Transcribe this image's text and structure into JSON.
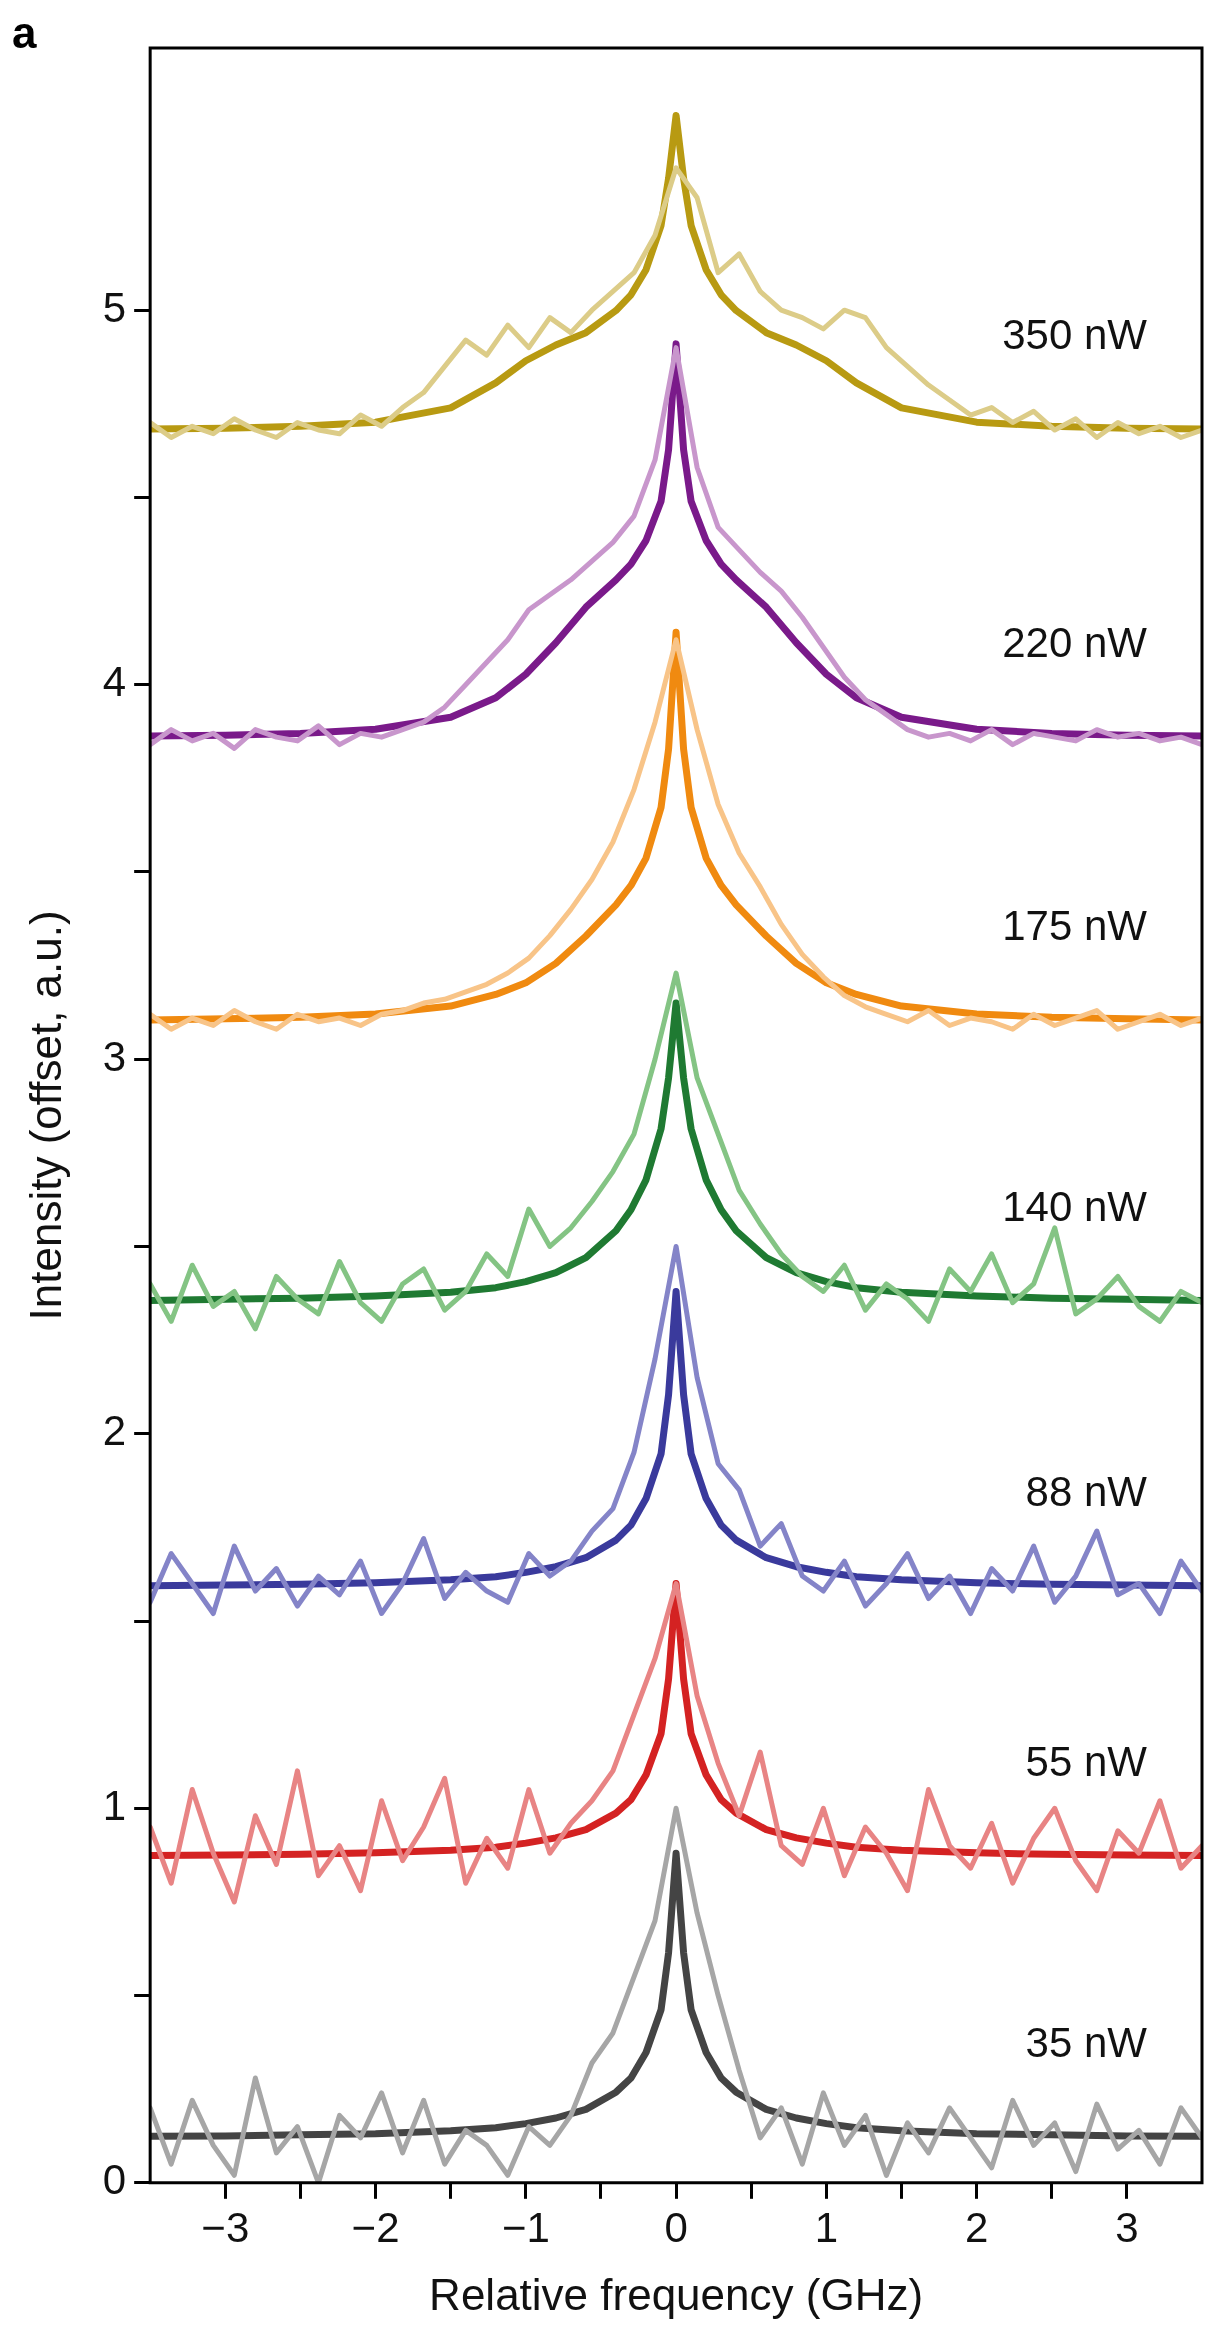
{
  "chart_data": {
    "type": "line",
    "xlabel": "Relative frequency (GHz)",
    "ylabel": "Intensity (offset, a.u.)",
    "annotations": [
      "a"
    ],
    "xlim": [
      -3.5,
      3.5
    ],
    "ylim": [
      0,
      5.7
    ],
    "xticks": [
      {
        "value": -3,
        "label": "−3"
      },
      {
        "value": -2.5,
        "label": null
      },
      {
        "value": -2,
        "label": "−2"
      },
      {
        "value": -1.5,
        "label": null
      },
      {
        "value": -1,
        "label": "−1"
      },
      {
        "value": -0.5,
        "label": null
      },
      0,
      {
        "value": 0.5,
        "label": null
      },
      1,
      {
        "value": 1.5,
        "label": null
      },
      2,
      {
        "value": 2.5,
        "label": null
      },
      3
    ],
    "yticks": [
      0,
      {
        "value": 0.5,
        "label": null
      },
      1,
      {
        "value": 1.5,
        "label": null
      },
      2,
      {
        "value": 2.5,
        "label": null
      },
      3,
      {
        "value": 3.5,
        "label": null
      },
      4,
      {
        "value": 4.5,
        "label": null
      },
      5
    ],
    "grid": false,
    "marker": "none",
    "line_style": "solid",
    "x": [
      -3.5,
      -3.36,
      -3.22,
      -3.08,
      -2.94,
      -2.8,
      -2.66,
      -2.52,
      -2.38,
      -2.24,
      -2.1,
      -1.96,
      -1.82,
      -1.68,
      -1.54,
      -1.4,
      -1.26,
      -1.12,
      -0.98,
      -0.84,
      -0.7,
      -0.56,
      -0.42,
      -0.28,
      -0.14,
      0,
      0.14,
      0.28,
      0.42,
      0.56,
      0.7,
      0.84,
      0.98,
      1.12,
      1.26,
      1.4,
      1.54,
      1.68,
      1.82,
      1.96,
      2.1,
      2.24,
      2.38,
      2.52,
      2.66,
      2.8,
      2.94,
      3.08,
      3.22,
      3.36,
      3.5
    ],
    "series": [
      {
        "color": "#a6a6a6",
        "values": [
          0.2,
          0.05,
          0.22,
          0.1,
          0.02,
          0.28,
          0.08,
          0.15,
          0.0,
          0.18,
          0.12,
          0.24,
          0.08,
          0.22,
          0.05,
          0.14,
          0.1,
          0.02,
          0.15,
          0.1,
          0.18,
          0.32,
          0.4,
          0.55,
          0.7,
          1.0,
          0.72,
          0.5,
          0.3,
          0.12,
          0.2,
          0.05,
          0.24,
          0.1,
          0.18,
          0.02,
          0.16,
          0.08,
          0.2,
          0.12,
          0.04,
          0.22,
          0.1,
          0.16,
          0.03,
          0.21,
          0.09,
          0.14,
          0.05,
          0.2,
          0.12
        ]
      },
      {
        "color": "#e88484",
        "values": [
          0.95,
          0.8,
          1.05,
          0.88,
          0.75,
          0.98,
          0.85,
          1.1,
          0.82,
          0.9,
          0.78,
          1.02,
          0.86,
          0.95,
          1.08,
          0.8,
          0.92,
          0.84,
          1.05,
          0.88,
          0.96,
          1.02,
          1.1,
          1.25,
          1.4,
          1.6,
          1.3,
          1.12,
          0.98,
          1.15,
          0.9,
          0.85,
          1.0,
          0.82,
          0.95,
          0.88,
          0.78,
          1.05,
          0.9,
          0.84,
          0.96,
          0.8,
          0.92,
          1.0,
          0.86,
          0.78,
          0.94,
          0.88,
          1.02,
          0.84,
          0.9
        ]
      },
      {
        "color": "#8484c8",
        "values": [
          1.55,
          1.68,
          1.6,
          1.52,
          1.7,
          1.58,
          1.64,
          1.54,
          1.62,
          1.57,
          1.66,
          1.52,
          1.6,
          1.72,
          1.56,
          1.63,
          1.58,
          1.55,
          1.68,
          1.62,
          1.66,
          1.74,
          1.8,
          1.95,
          2.2,
          2.5,
          2.15,
          1.92,
          1.85,
          1.7,
          1.76,
          1.62,
          1.58,
          1.66,
          1.54,
          1.6,
          1.68,
          1.56,
          1.62,
          1.52,
          1.64,
          1.58,
          1.7,
          1.55,
          1.62,
          1.74,
          1.57,
          1.6,
          1.52,
          1.66,
          1.58
        ]
      },
      {
        "color": "#84c484",
        "values": [
          2.4,
          2.3,
          2.45,
          2.34,
          2.38,
          2.28,
          2.42,
          2.36,
          2.32,
          2.46,
          2.35,
          2.3,
          2.4,
          2.44,
          2.33,
          2.38,
          2.48,
          2.42,
          2.6,
          2.5,
          2.55,
          2.62,
          2.7,
          2.8,
          3.0,
          3.23,
          2.95,
          2.8,
          2.65,
          2.56,
          2.48,
          2.42,
          2.38,
          2.45,
          2.33,
          2.4,
          2.36,
          2.3,
          2.44,
          2.38,
          2.48,
          2.35,
          2.4,
          2.55,
          2.32,
          2.36,
          2.42,
          2.34,
          2.3,
          2.38,
          2.35
        ]
      },
      {
        "color": "#f8c488",
        "values": [
          3.12,
          3.08,
          3.11,
          3.09,
          3.13,
          3.1,
          3.08,
          3.12,
          3.1,
          3.11,
          3.09,
          3.12,
          3.13,
          3.15,
          3.16,
          3.18,
          3.2,
          3.23,
          3.27,
          3.33,
          3.4,
          3.48,
          3.58,
          3.72,
          3.9,
          4.12,
          3.88,
          3.68,
          3.55,
          3.46,
          3.36,
          3.28,
          3.22,
          3.17,
          3.14,
          3.12,
          3.1,
          3.13,
          3.09,
          3.11,
          3.1,
          3.08,
          3.12,
          3.09,
          3.11,
          3.13,
          3.08,
          3.1,
          3.12,
          3.09,
          3.11
        ]
      },
      {
        "color": "#c896cc",
        "values": [
          3.84,
          3.88,
          3.85,
          3.87,
          3.83,
          3.88,
          3.86,
          3.85,
          3.89,
          3.84,
          3.87,
          3.86,
          3.88,
          3.9,
          3.94,
          4.0,
          4.06,
          4.12,
          4.2,
          4.24,
          4.28,
          4.33,
          4.38,
          4.45,
          4.6,
          4.9,
          4.58,
          4.42,
          4.36,
          4.3,
          4.25,
          4.18,
          4.1,
          4.02,
          3.96,
          3.92,
          3.88,
          3.86,
          3.87,
          3.85,
          3.88,
          3.84,
          3.87,
          3.86,
          3.85,
          3.88,
          3.86,
          3.87,
          3.85,
          3.86,
          3.84
        ]
      },
      {
        "color": "#dccc88",
        "values": [
          4.7,
          4.66,
          4.69,
          4.67,
          4.71,
          4.68,
          4.66,
          4.7,
          4.68,
          4.67,
          4.72,
          4.69,
          4.74,
          4.78,
          4.85,
          4.92,
          4.88,
          4.96,
          4.9,
          4.98,
          4.94,
          5.0,
          5.05,
          5.1,
          5.2,
          5.38,
          5.3,
          5.1,
          5.15,
          5.05,
          5.0,
          4.98,
          4.95,
          5.0,
          4.98,
          4.9,
          4.85,
          4.8,
          4.76,
          4.72,
          4.74,
          4.7,
          4.73,
          4.68,
          4.71,
          4.66,
          4.7,
          4.67,
          4.69,
          4.66,
          4.68
        ]
      },
      {
        "name": "35 nW",
        "color": "#444444",
        "x": [
          -3.5,
          -3,
          -2.5,
          -2,
          -1.5,
          -1.2,
          -1,
          -0.8,
          -0.6,
          -0.4,
          -0.3,
          -0.2,
          -0.1,
          -0.05,
          0,
          0.05,
          0.1,
          0.2,
          0.3,
          0.4,
          0.6,
          0.8,
          1,
          1.2,
          1.5,
          2,
          2.5,
          3,
          3.5
        ],
        "values": [
          0.124,
          0.125,
          0.128,
          0.131,
          0.139,
          0.147,
          0.158,
          0.173,
          0.196,
          0.242,
          0.28,
          0.348,
          0.462,
          0.614,
          0.88,
          0.614,
          0.462,
          0.348,
          0.28,
          0.242,
          0.196,
          0.173,
          0.158,
          0.147,
          0.139,
          0.131,
          0.128,
          0.125,
          0.124
        ]
      },
      {
        "name": "55 nW",
        "color": "#d42222",
        "x": [
          -3.5,
          -3,
          -2.5,
          -2,
          -1.5,
          -1.2,
          -1,
          -0.8,
          -0.6,
          -0.4,
          -0.3,
          -0.2,
          -0.1,
          -0.05,
          0,
          0.05,
          0.1,
          0.2,
          0.3,
          0.4,
          0.6,
          0.8,
          1,
          1.2,
          1.5,
          2,
          2.5,
          3,
          3.5
        ],
        "values": [
          0.874,
          0.875,
          0.877,
          0.881,
          0.888,
          0.896,
          0.907,
          0.921,
          0.943,
          0.987,
          1.023,
          1.089,
          1.199,
          1.345,
          1.6,
          1.345,
          1.199,
          1.089,
          1.023,
          0.987,
          0.943,
          0.921,
          0.907,
          0.896,
          0.888,
          0.881,
          0.877,
          0.875,
          0.874
        ]
      },
      {
        "name": "88 nW",
        "color": "#3a3a9c",
        "x": [
          -3.5,
          -3,
          -2.5,
          -2,
          -1.5,
          -1.2,
          -1,
          -0.8,
          -0.6,
          -0.4,
          -0.3,
          -0.2,
          -0.1,
          -0.05,
          0,
          0.05,
          0.1,
          0.2,
          0.3,
          0.4,
          0.6,
          0.8,
          1,
          1.2,
          1.5,
          2,
          2.5,
          3,
          3.5
        ],
        "values": [
          1.594,
          1.596,
          1.598,
          1.602,
          1.61,
          1.618,
          1.63,
          1.645,
          1.669,
          1.716,
          1.756,
          1.827,
          1.946,
          2.104,
          2.38,
          2.104,
          1.946,
          1.827,
          1.756,
          1.716,
          1.669,
          1.645,
          1.63,
          1.618,
          1.61,
          1.602,
          1.598,
          1.596,
          1.594
        ]
      },
      {
        "name": "140 nW",
        "color": "#1f7a32",
        "x": [
          -3.5,
          -3,
          -2.5,
          -2,
          -1.5,
          -1.2,
          -1,
          -0.8,
          -0.6,
          -0.4,
          -0.3,
          -0.2,
          -0.1,
          -0.05,
          0,
          0.05,
          0.1,
          0.2,
          0.3,
          0.4,
          0.6,
          0.8,
          1,
          1.2,
          1.5,
          2,
          2.5,
          3,
          3.5
        ],
        "values": [
          2.356,
          2.359,
          2.362,
          2.368,
          2.378,
          2.39,
          2.406,
          2.43,
          2.47,
          2.542,
          2.598,
          2.678,
          2.814,
          2.95,
          3.15,
          2.95,
          2.814,
          2.678,
          2.598,
          2.542,
          2.47,
          2.43,
          2.406,
          2.39,
          2.378,
          2.368,
          2.362,
          2.359,
          2.356
        ]
      },
      {
        "name": "175 nW",
        "color": "#f08a10",
        "x": [
          -3.5,
          -3,
          -2.5,
          -2,
          -1.5,
          -1.2,
          -1,
          -0.8,
          -0.6,
          -0.4,
          -0.3,
          -0.2,
          -0.1,
          -0.05,
          0,
          0.05,
          0.1,
          0.2,
          0.3,
          0.4,
          0.6,
          0.8,
          1,
          1.2,
          1.5,
          2,
          2.5,
          3,
          3.5
        ],
        "values": [
          3.105,
          3.108,
          3.112,
          3.121,
          3.142,
          3.173,
          3.204,
          3.256,
          3.329,
          3.412,
          3.464,
          3.537,
          3.672,
          3.828,
          4.14,
          3.828,
          3.672,
          3.537,
          3.464,
          3.412,
          3.329,
          3.256,
          3.204,
          3.173,
          3.142,
          3.121,
          3.112,
          3.108,
          3.105
        ]
      },
      {
        "name": "220 nW",
        "color": "#7a1a8a",
        "x": [
          -3.5,
          -3,
          -2.5,
          -2,
          -1.5,
          -1.2,
          -1,
          -0.8,
          -0.6,
          -0.4,
          -0.3,
          -0.2,
          -0.1,
          -0.05,
          0,
          0.05,
          0.1,
          0.2,
          0.3,
          0.4,
          0.6,
          0.8,
          1,
          1.2,
          1.5,
          2,
          2.5,
          3,
          3.5
        ],
        "values": [
          3.863,
          3.865,
          3.87,
          3.881,
          3.913,
          3.965,
          4.028,
          4.112,
          4.207,
          4.28,
          4.322,
          4.385,
          4.49,
          4.627,
          4.91,
          4.627,
          4.49,
          4.385,
          4.322,
          4.28,
          4.207,
          4.112,
          4.028,
          3.965,
          3.913,
          3.881,
          3.87,
          3.865,
          3.863
        ]
      },
      {
        "name": "350 nW",
        "color": "#b89a12",
        "x": [
          -3.5,
          -3,
          -2.5,
          -2,
          -1.5,
          -1.2,
          -1,
          -0.8,
          -0.6,
          -0.4,
          -0.3,
          -0.2,
          -0.1,
          -0.05,
          0,
          0.05,
          0.1,
          0.2,
          0.3,
          0.4,
          0.6,
          0.8,
          1,
          1.2,
          1.5,
          2,
          2.5,
          3,
          3.5
        ],
        "values": [
          4.683,
          4.685,
          4.69,
          4.701,
          4.739,
          4.806,
          4.865,
          4.907,
          4.94,
          4.999,
          5.041,
          5.108,
          5.226,
          5.352,
          5.52,
          5.352,
          5.226,
          5.108,
          5.041,
          4.999,
          4.94,
          4.907,
          4.865,
          4.806,
          4.739,
          4.701,
          4.69,
          4.685,
          4.683
        ]
      }
    ]
  }
}
